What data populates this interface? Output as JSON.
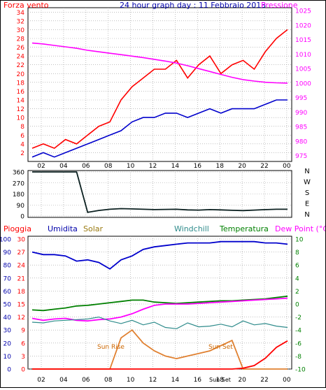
{
  "chart_data": [
    {
      "type": "line",
      "title": "24 hour graph day : 11 Febbraio 2013",
      "left_axis_label": "Forza vento",
      "right_axis_label": "Pressione",
      "x": [
        "01",
        "02",
        "03",
        "04",
        "05",
        "06",
        "07",
        "08",
        "09",
        "10",
        "11",
        "12",
        "13",
        "14",
        "15",
        "16",
        "17",
        "18",
        "19",
        "20",
        "21",
        "22",
        "23",
        "00"
      ],
      "x_tick_labels": [
        "02",
        "04",
        "06",
        "08",
        "10",
        "12",
        "14",
        "16",
        "18",
        "20",
        "22",
        "00"
      ],
      "y_left_ticks": [
        "2",
        "4",
        "6",
        "8",
        "10",
        "12",
        "14",
        "16",
        "18",
        "20",
        "22",
        "24",
        "26",
        "28",
        "30",
        "32",
        "34"
      ],
      "y_left_range": [
        0,
        35
      ],
      "y_right_ticks": [
        "975",
        "980",
        "985",
        "990",
        "995",
        "1000",
        "1005",
        "1010",
        "1015",
        "1020",
        "1025"
      ],
      "y_right_range": [
        973,
        1026
      ],
      "grid": true,
      "series": [
        {
          "name": "Gust",
          "axis": "left",
          "color": "#ff0000",
          "values": [
            3,
            4,
            3,
            5,
            4,
            6,
            8,
            9,
            14,
            17,
            19,
            21,
            21,
            23,
            19,
            22,
            24,
            20,
            22,
            23,
            21,
            25,
            28,
            30
          ]
        },
        {
          "name": "Wind",
          "axis": "left",
          "color": "#0000cc",
          "values": [
            1,
            2,
            1,
            2,
            3,
            4,
            5,
            6,
            7,
            9,
            10,
            10,
            11,
            11,
            10,
            11,
            12,
            11,
            12,
            12,
            12,
            13,
            14,
            14
          ]
        },
        {
          "name": "Pressione",
          "axis": "right",
          "color": "#ff00ff",
          "values": [
            1013.8,
            1013.5,
            1013.0,
            1012.5,
            1012.0,
            1011.3,
            1010.8,
            1010.3,
            1009.8,
            1009.3,
            1008.8,
            1008.2,
            1007.6,
            1006.9,
            1006.0,
            1005.0,
            1004.0,
            1003.0,
            1002.0,
            1001.2,
            1000.7,
            1000.3,
            1000.1,
            1000.0
          ]
        }
      ]
    },
    {
      "type": "line",
      "y_ticks": [
        "360",
        "270",
        "180",
        "90",
        "0"
      ],
      "y_range": [
        0,
        360
      ],
      "right_labels": [
        "N",
        "W",
        "S",
        "E",
        "N"
      ],
      "grid": true,
      "series": [
        {
          "name": "Direzione",
          "color": "#0a1f1f",
          "values": [
            360,
            360,
            360,
            360,
            360,
            30,
            45,
            55,
            60,
            58,
            55,
            52,
            54,
            55,
            50,
            48,
            52,
            50,
            46,
            44,
            48,
            52,
            55,
            55
          ]
        }
      ]
    },
    {
      "type": "line",
      "series_labels": [
        {
          "text": "Pioggia",
          "color": "#ff0000"
        },
        {
          "text": "Umidita",
          "color": "#0000aa"
        },
        {
          "text": "Solar",
          "color": "#9a7a10"
        },
        {
          "text": "Windchill",
          "color": "#2e8b8b"
        },
        {
          "text": "Temperatura",
          "color": "#008000"
        },
        {
          "text": "Dew Point (°C)",
          "color": "#ff00ff"
        }
      ],
      "y_left1_ticks": [
        "0",
        "10",
        "20",
        "30",
        "40",
        "50",
        "60",
        "70",
        "80",
        "90",
        "100"
      ],
      "y_left2_ticks": [
        "0",
        "3",
        "6",
        "9",
        "12",
        "15",
        "18",
        "21",
        "24",
        "27",
        "30"
      ],
      "y_right_ticks": [
        "10",
        "8",
        "6",
        "4",
        "2",
        "0",
        "-2",
        "-4",
        "-6",
        "-8",
        "-10"
      ],
      "x_tick_labels": [
        "02",
        "04",
        "06",
        "08",
        "10",
        "12",
        "14",
        "16",
        "18",
        "20",
        "22",
        "00"
      ],
      "annotations": [
        "Sun Rise",
        "Sun Set",
        "Sun Set"
      ],
      "grid": true,
      "series": [
        {
          "name": "Umidita",
          "axis": "percent",
          "color": "#0000cc",
          "values": [
            90,
            88,
            88,
            87,
            83,
            84,
            82,
            77,
            84,
            87,
            92,
            94,
            95,
            96,
            97,
            97,
            97,
            98,
            98,
            98,
            98,
            97,
            97,
            96
          ]
        },
        {
          "name": "Temperatura",
          "axis": "celsius",
          "color": "#008000",
          "values": [
            -0.9,
            -1.0,
            -0.8,
            -0.6,
            -0.3,
            -0.2,
            0.0,
            0.2,
            0.4,
            0.6,
            0.6,
            0.3,
            0.2,
            0.1,
            0.2,
            0.3,
            0.4,
            0.5,
            0.5,
            0.6,
            0.7,
            0.8,
            1.0,
            1.2
          ]
        },
        {
          "name": "Dew Point",
          "axis": "celsius",
          "color": "#ff00ff",
          "values": [
            -2.2,
            -2.5,
            -2.3,
            -2.2,
            -2.5,
            -2.6,
            -2.4,
            -2.3,
            -2.0,
            -1.5,
            -0.8,
            -0.2,
            0.0,
            0.0,
            0.0,
            0.1,
            0.2,
            0.3,
            0.4,
            0.5,
            0.6,
            0.7,
            0.8,
            0.9
          ]
        },
        {
          "name": "Windchill",
          "axis": "celsius",
          "color": "#2e8b8b",
          "values": [
            -2.8,
            -2.9,
            -2.6,
            -2.5,
            -2.4,
            -2.3,
            -2.0,
            -2.6,
            -3.0,
            -2.5,
            -3.2,
            -2.8,
            -3.6,
            -3.8,
            -2.9,
            -3.5,
            -3.4,
            -3.1,
            -3.5,
            -2.6,
            -3.2,
            -3.0,
            -3.4,
            -3.6
          ]
        },
        {
          "name": "Solar",
          "axis": "percent",
          "color": "#e08030",
          "values": [
            0,
            0,
            0,
            0,
            0,
            0,
            0,
            0,
            24,
            30,
            20,
            14,
            10,
            8,
            10,
            12,
            14,
            18,
            22,
            0,
            0,
            0,
            0,
            0
          ]
        },
        {
          "name": "Pioggia",
          "axis": "mm",
          "color": "#ff0000",
          "values": [
            0,
            0,
            0,
            0,
            0,
            0,
            0,
            0,
            0,
            0,
            0,
            0,
            0,
            0,
            0,
            0,
            0,
            0,
            0,
            0.2,
            0.8,
            2.5,
            5.0,
            6.5
          ]
        }
      ]
    }
  ]
}
